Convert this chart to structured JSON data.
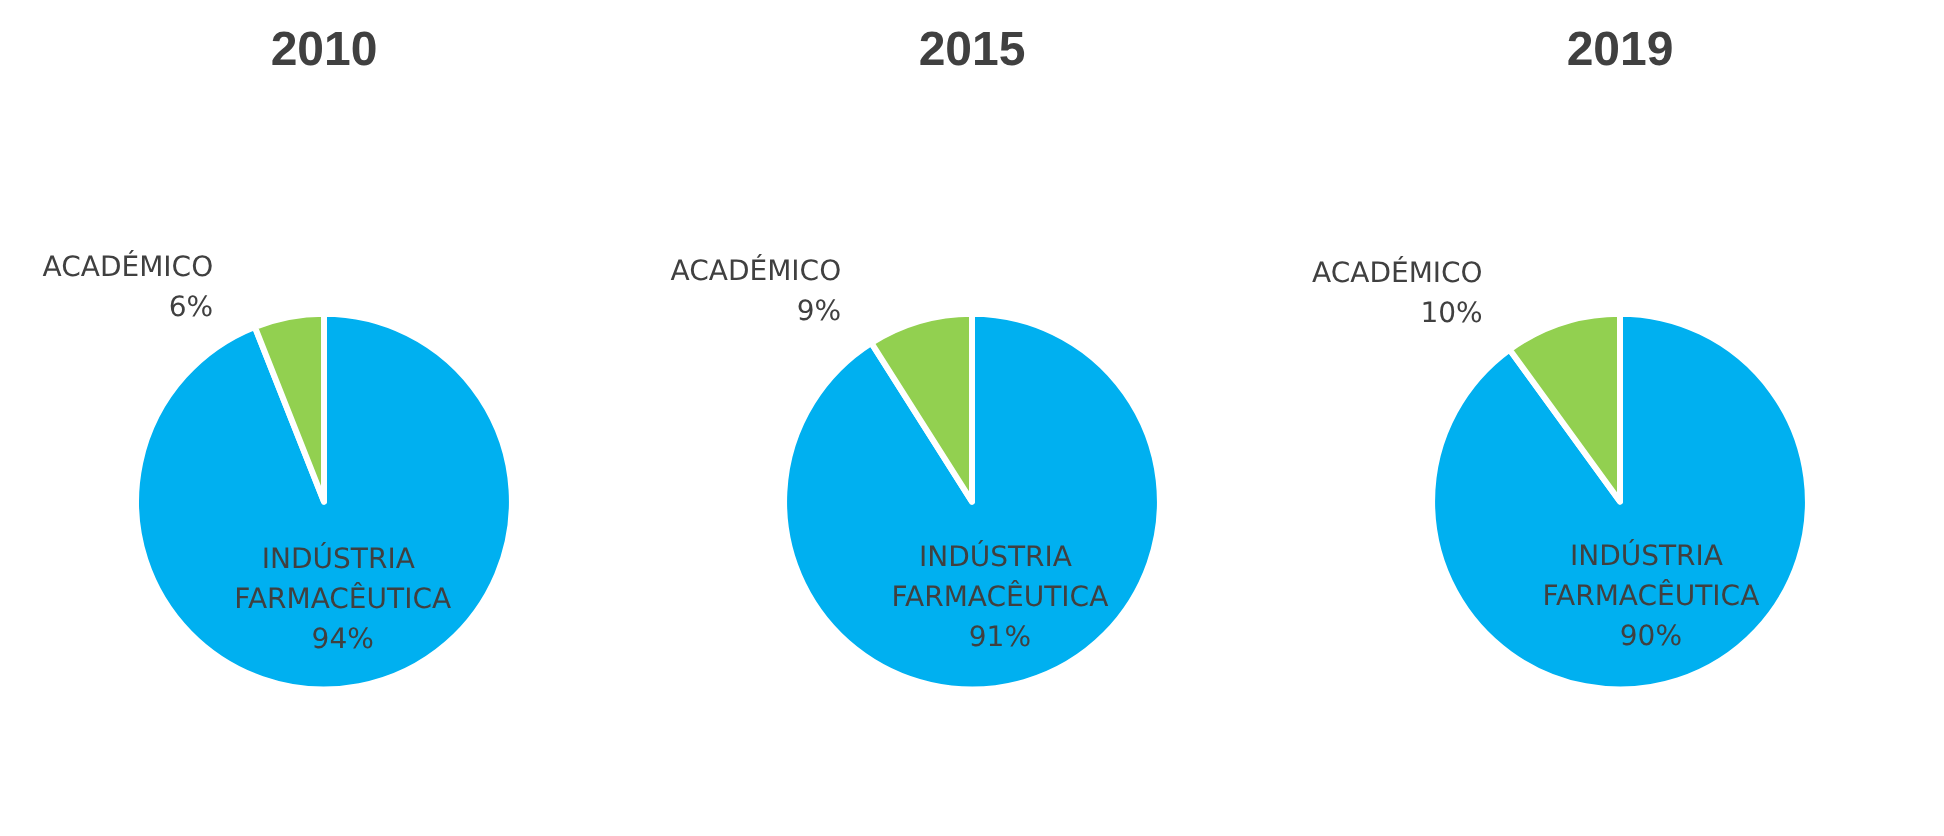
{
  "chart_data": [
    {
      "type": "pie",
      "title": "2010",
      "categories": [
        "INDÚSTRIA FARMACÊUTICA",
        "ACADÉMICO"
      ],
      "values": [
        94,
        6
      ],
      "colors": [
        "#00b0f0",
        "#92d050"
      ],
      "value_labels": [
        "94%",
        "6%"
      ]
    },
    {
      "type": "pie",
      "title": "2015",
      "categories": [
        "INDÚSTRIA FARMACÊUTICA",
        "ACADÉMICO"
      ],
      "values": [
        91,
        9
      ],
      "colors": [
        "#00b0f0",
        "#92d050"
      ],
      "value_labels": [
        "91%",
        "9%"
      ]
    },
    {
      "type": "pie",
      "title": "2019",
      "categories": [
        "INDÚSTRIA FARMACÊUTICA",
        "ACADÉMICO"
      ],
      "values": [
        90,
        10
      ],
      "colors": [
        "#00b0f0",
        "#92d050"
      ],
      "value_labels": [
        "90%",
        "10%"
      ]
    }
  ]
}
